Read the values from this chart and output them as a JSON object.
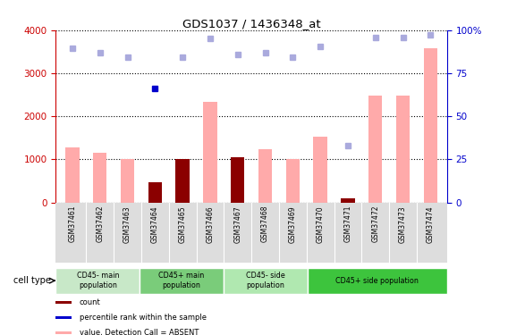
{
  "title": "GDS1037 / 1436348_at",
  "samples": [
    "GSM37461",
    "GSM37462",
    "GSM37463",
    "GSM37464",
    "GSM37465",
    "GSM37466",
    "GSM37467",
    "GSM37468",
    "GSM37469",
    "GSM37470",
    "GSM37471",
    "GSM37472",
    "GSM37473",
    "GSM37474"
  ],
  "pink_values": [
    1280,
    1150,
    1010,
    460,
    1010,
    2330,
    1050,
    1230,
    1010,
    1530,
    100,
    2480,
    2490,
    3580
  ],
  "dark_red_values": [
    0,
    0,
    0,
    460,
    1010,
    0,
    1050,
    0,
    0,
    0,
    100,
    0,
    0,
    0
  ],
  "rank_values": [
    3590,
    3480,
    3380,
    2640,
    3380,
    3800,
    3430,
    3480,
    3380,
    3620,
    1320,
    3820,
    3820,
    3900
  ],
  "is_dark_blue": [
    false,
    false,
    false,
    true,
    false,
    false,
    false,
    false,
    false,
    false,
    false,
    false,
    false,
    false
  ],
  "cell_types": [
    {
      "label": "CD45- main\npopulation",
      "start": 0,
      "end": 3,
      "color": "#c8e8c8"
    },
    {
      "label": "CD45+ main\npopulation",
      "start": 3,
      "end": 6,
      "color": "#7acc7a"
    },
    {
      "label": "CD45- side\npopulation",
      "start": 6,
      "end": 9,
      "color": "#b0e8b0"
    },
    {
      "label": "CD45+ side population",
      "start": 9,
      "end": 14,
      "color": "#3dc43d"
    }
  ],
  "ylim_left": [
    0,
    4000
  ],
  "ylim_right": [
    0,
    100
  ],
  "yticks_left": [
    0,
    1000,
    2000,
    3000,
    4000
  ],
  "yticks_right": [
    0,
    25,
    50,
    75,
    100
  ],
  "left_color": "#cc0000",
  "right_color": "#0000cc",
  "pink_color": "#ffaaaa",
  "dark_red_color": "#8b0000",
  "light_blue_color": "#aaaadd",
  "dark_blue_color": "#0000cc",
  "cell_type_label": "cell type"
}
